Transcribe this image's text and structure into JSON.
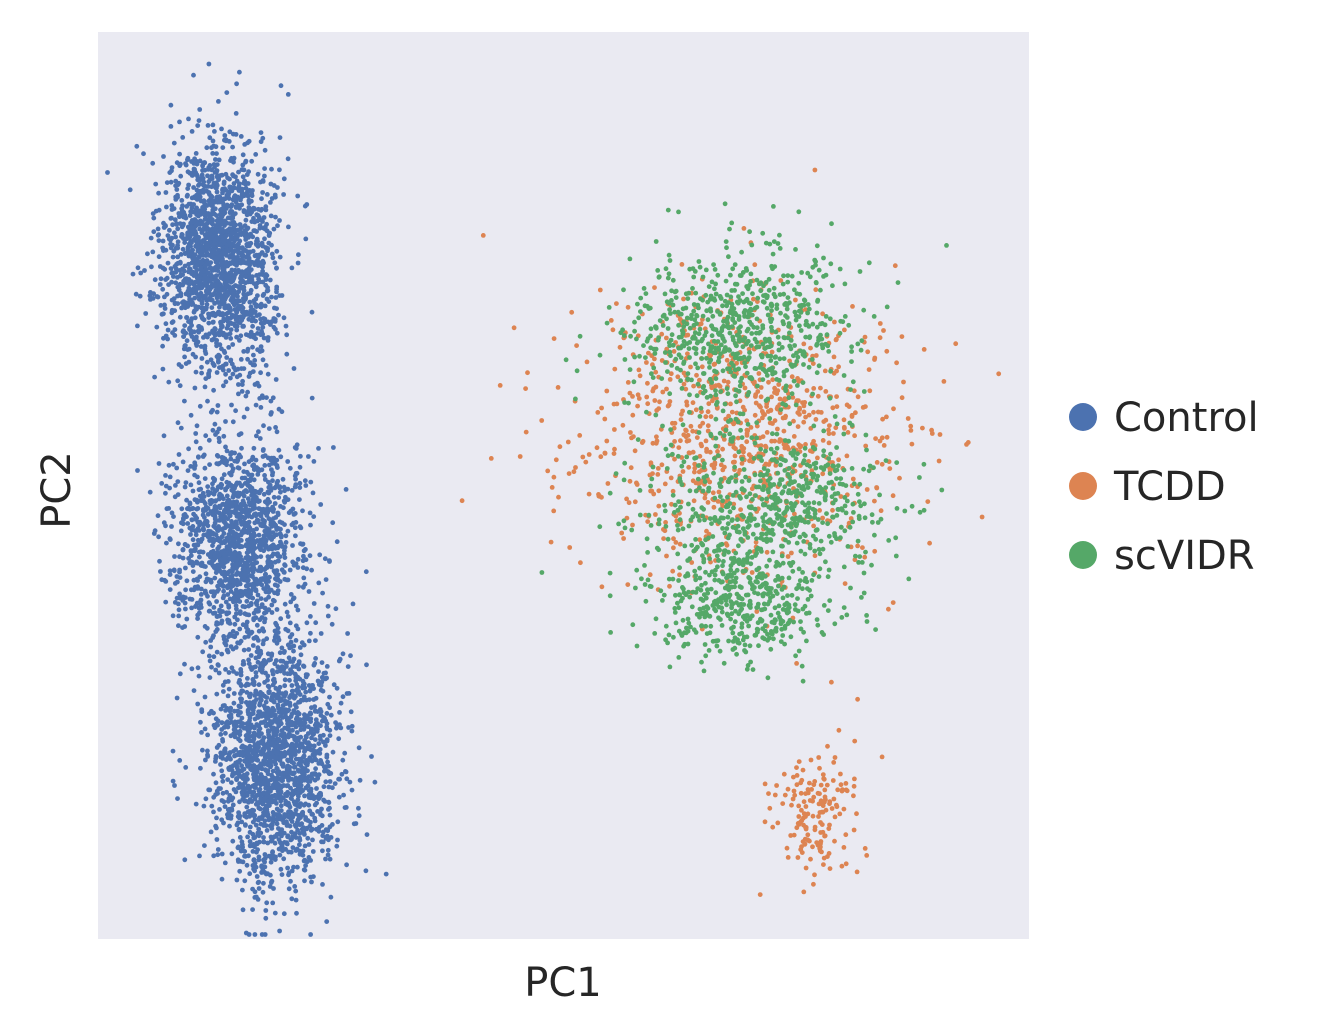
{
  "chart_data": {
    "type": "scatter",
    "title": "",
    "xlabel": "PC1",
    "ylabel": "PC2",
    "ticks_shown": false,
    "grid": false,
    "background_color": "#EAEAF2",
    "xlim": [
      0,
      100
    ],
    "ylim": [
      0,
      100
    ],
    "legend_position": "right",
    "series": [
      {
        "name": "Control",
        "color": "#4C72B0",
        "clusters": [
          {
            "cx": 13,
            "cy": 75,
            "sx": 3.0,
            "sy": 6.5,
            "n": 1800
          },
          {
            "cx": 15,
            "cy": 44,
            "sx": 3.5,
            "sy": 5.5,
            "n": 1400
          },
          {
            "cx": 19,
            "cy": 20,
            "sx": 3.5,
            "sy": 7.0,
            "n": 1800
          }
        ]
      },
      {
        "name": "TCDD",
        "color": "#DD8452",
        "clusters": [
          {
            "cx": 69,
            "cy": 56,
            "sx": 9.0,
            "sy": 8.0,
            "n": 900
          },
          {
            "cx": 77,
            "cy": 14,
            "sx": 2.2,
            "sy": 3.5,
            "n": 160
          }
        ]
      },
      {
        "name": "scVIDR",
        "color": "#55A868",
        "clusters": [
          {
            "cx": 68,
            "cy": 67,
            "sx": 6.0,
            "sy": 4.5,
            "n": 700
          },
          {
            "cx": 72,
            "cy": 48,
            "sx": 6.0,
            "sy": 4.0,
            "n": 600
          },
          {
            "cx": 69,
            "cy": 37,
            "sx": 5.0,
            "sy": 3.0,
            "n": 450
          }
        ]
      }
    ]
  }
}
